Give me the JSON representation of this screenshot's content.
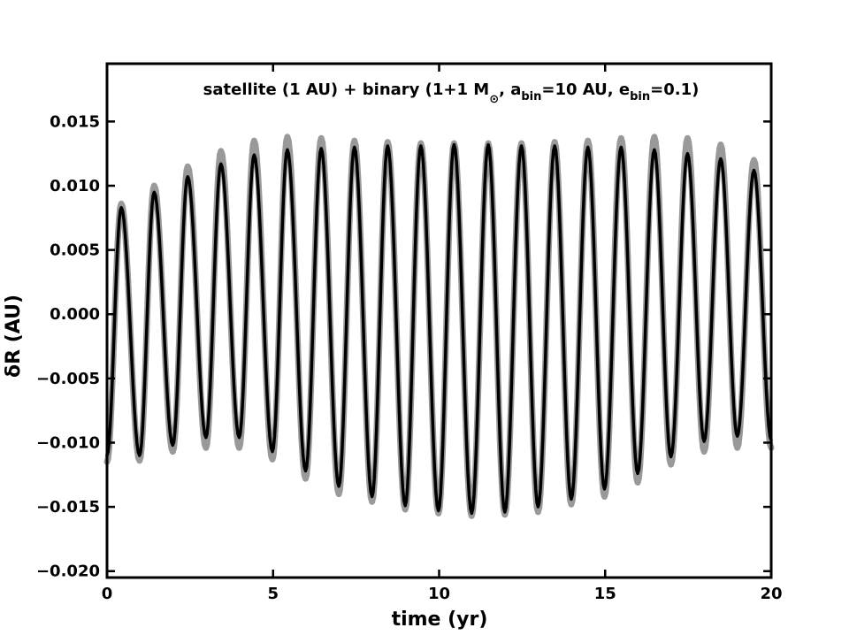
{
  "chart_data": {
    "type": "line",
    "title_parts": {
      "part1": "satellite (1 AU) + binary (1+1 M",
      "sun_symbol": "⊙",
      "part2": ", a",
      "sub_a": "bin",
      "part3": "=10 AU, e",
      "sub_e": "bin",
      "part4": "=0.1)"
    },
    "xlabel": "time (yr)",
    "ylabel": "δR (AU)",
    "xlim": [
      0,
      20
    ],
    "ylim": [
      -0.0205,
      0.0195
    ],
    "xticks": [
      0,
      5,
      10,
      15,
      20
    ],
    "xtick_labels": [
      "0",
      "5",
      "10",
      "15",
      "20"
    ],
    "yticks": [
      0.015,
      0.01,
      0.005,
      0.0,
      -0.005,
      -0.01,
      -0.015,
      -0.02
    ],
    "ytick_labels": [
      "0.015",
      "0.010",
      "0.005",
      "0.000",
      "−0.005",
      "−0.010",
      "−0.015",
      "−0.020"
    ],
    "grid": false,
    "series": [
      {
        "color": "#999999",
        "linewidth": 7,
        "points": [
          [
            0.0,
            -0.0115
          ],
          [
            0.43,
            0.0086
          ],
          [
            0.98,
            -0.0114
          ],
          [
            1.42,
            0.01
          ],
          [
            1.98,
            -0.0107
          ],
          [
            2.43,
            0.0115
          ],
          [
            2.98,
            -0.0104
          ],
          [
            3.43,
            0.0127
          ],
          [
            3.98,
            -0.0104
          ],
          [
            4.43,
            0.0135
          ],
          [
            4.98,
            -0.0113
          ],
          [
            5.43,
            0.0138
          ],
          [
            5.98,
            -0.0128
          ],
          [
            6.45,
            0.0137
          ],
          [
            6.98,
            -0.014
          ],
          [
            7.45,
            0.0135
          ],
          [
            7.98,
            -0.0146
          ],
          [
            8.45,
            0.0134
          ],
          [
            8.98,
            -0.0152
          ],
          [
            9.45,
            0.0133
          ],
          [
            9.98,
            -0.0155
          ],
          [
            10.45,
            0.0133
          ],
          [
            10.98,
            -0.0157
          ],
          [
            11.48,
            0.0133
          ],
          [
            11.98,
            -0.0156
          ],
          [
            12.48,
            0.0133
          ],
          [
            12.98,
            -0.0154
          ],
          [
            13.48,
            0.0134
          ],
          [
            13.98,
            -0.0148
          ],
          [
            14.48,
            0.0135
          ],
          [
            14.98,
            -0.0142
          ],
          [
            15.48,
            0.0137
          ],
          [
            15.98,
            -0.0131
          ],
          [
            16.48,
            0.0138
          ],
          [
            16.98,
            -0.0117
          ],
          [
            17.48,
            0.0137
          ],
          [
            17.98,
            -0.0107
          ],
          [
            18.48,
            0.0132
          ],
          [
            18.98,
            -0.0104
          ],
          [
            19.48,
            0.012
          ],
          [
            20.0,
            -0.0104
          ]
        ]
      },
      {
        "color": "#000000",
        "linewidth": 3.5,
        "points": [
          [
            0.0,
            -0.011
          ],
          [
            0.43,
            0.0083
          ],
          [
            0.98,
            -0.011
          ],
          [
            1.42,
            0.0095
          ],
          [
            1.98,
            -0.0102
          ],
          [
            2.43,
            0.0107
          ],
          [
            2.98,
            -0.0096
          ],
          [
            3.43,
            0.0117
          ],
          [
            3.98,
            -0.0096
          ],
          [
            4.43,
            0.0124
          ],
          [
            4.98,
            -0.0107
          ],
          [
            5.43,
            0.0128
          ],
          [
            5.98,
            -0.0122
          ],
          [
            6.45,
            0.0129
          ],
          [
            6.98,
            -0.0134
          ],
          [
            7.45,
            0.013
          ],
          [
            7.98,
            -0.0142
          ],
          [
            8.45,
            0.0131
          ],
          [
            8.98,
            -0.0149
          ],
          [
            9.45,
            0.0131
          ],
          [
            9.98,
            -0.0153
          ],
          [
            10.45,
            0.0132
          ],
          [
            10.98,
            -0.0155
          ],
          [
            11.48,
            0.0132
          ],
          [
            11.98,
            -0.0154
          ],
          [
            12.48,
            0.0131
          ],
          [
            12.98,
            -0.015
          ],
          [
            13.48,
            0.0131
          ],
          [
            13.98,
            -0.0144
          ],
          [
            14.48,
            0.013
          ],
          [
            14.98,
            -0.0136
          ],
          [
            15.48,
            0.013
          ],
          [
            15.98,
            -0.0124
          ],
          [
            16.48,
            0.0128
          ],
          [
            16.98,
            -0.0111
          ],
          [
            17.48,
            0.0125
          ],
          [
            17.98,
            -0.0099
          ],
          [
            18.48,
            0.0121
          ],
          [
            18.98,
            -0.0095
          ],
          [
            19.48,
            0.0112
          ],
          [
            20.0,
            -0.0098
          ]
        ]
      }
    ]
  }
}
